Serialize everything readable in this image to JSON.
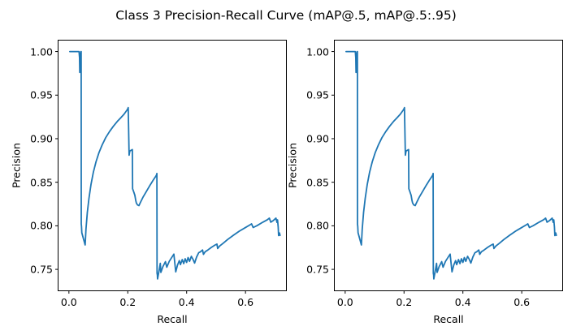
{
  "figure": {
    "background": "#ffffff",
    "text_color": "#000000",
    "spine_color": "#000000"
  },
  "chart_data": {
    "type": "line",
    "suptitle": "Class 3 Precision-Recall Curve (mAP@.5, mAP@.5:.95)",
    "grid": false,
    "legend": "none",
    "note": "two side-by-side subplots displaying the identical precision-recall curve",
    "subplots": [
      {
        "xlabel": "Recall",
        "ylabel": "Precision",
        "xlim": [
          -0.0368,
          0.739
        ],
        "ylim": [
          0.7254,
          1.0131
        ],
        "xtick_values": [
          0.0,
          0.2,
          0.4,
          0.6
        ],
        "xtick_labels": [
          "0.0",
          "0.2",
          "0.4",
          "0.6"
        ],
        "ytick_values": [
          0.75,
          0.8,
          0.85,
          0.9,
          0.95,
          1.0
        ],
        "ytick_labels": [
          "0.75",
          "0.80",
          "0.85",
          "0.90",
          "0.95",
          "1.00"
        ]
      },
      {
        "xlabel": "Recall",
        "ylabel": "Precision",
        "xlim": [
          -0.0368,
          0.739
        ],
        "ylim": [
          0.7254,
          1.0131
        ],
        "xtick_values": [
          0.0,
          0.2,
          0.4,
          0.6
        ],
        "xtick_labels": [
          "0.0",
          "0.2",
          "0.4",
          "0.6"
        ],
        "ytick_values": [
          0.75,
          0.8,
          0.85,
          0.9,
          0.95,
          1.0
        ],
        "ytick_labels": [
          "0.75",
          "0.80",
          "0.85",
          "0.90",
          "0.95",
          "1.00"
        ]
      }
    ],
    "series": [
      {
        "name": "precision-recall-curve",
        "color": "#1f77b4",
        "line_width": 1.8,
        "points": [
          [
            0.003,
            1.0
          ],
          [
            0.0345,
            1.0
          ],
          [
            0.0362,
            0.993
          ],
          [
            0.0368,
            0.976
          ],
          [
            0.0375,
            0.993
          ],
          [
            0.0405,
            1.0
          ],
          [
            0.0415,
            1.0
          ],
          [
            0.0418,
            0.802
          ],
          [
            0.0428,
            0.7995
          ],
          [
            0.0438,
            0.792
          ],
          [
            0.055,
            0.778
          ],
          [
            0.058,
            0.796
          ],
          [
            0.0625,
            0.8155
          ],
          [
            0.068,
            0.8315
          ],
          [
            0.075,
            0.8475
          ],
          [
            0.083,
            0.8615
          ],
          [
            0.092,
            0.8735
          ],
          [
            0.102,
            0.884
          ],
          [
            0.113,
            0.893
          ],
          [
            0.125,
            0.9012
          ],
          [
            0.138,
            0.9082
          ],
          [
            0.151,
            0.9142
          ],
          [
            0.164,
            0.9196
          ],
          [
            0.176,
            0.924
          ],
          [
            0.187,
            0.928
          ],
          [
            0.1945,
            0.9315
          ],
          [
            0.1995,
            0.934
          ],
          [
            0.2015,
            0.9356
          ],
          [
            0.2045,
            0.881
          ],
          [
            0.207,
            0.8858
          ],
          [
            0.212,
            0.8868
          ],
          [
            0.2155,
            0.8875
          ],
          [
            0.2165,
            0.8425
          ],
          [
            0.22,
            0.8392
          ],
          [
            0.224,
            0.835
          ],
          [
            0.2268,
            0.8295
          ],
          [
            0.2292,
            0.8262
          ],
          [
            0.233,
            0.824
          ],
          [
            0.238,
            0.8232
          ],
          [
            0.243,
            0.8268
          ],
          [
            0.252,
            0.833
          ],
          [
            0.264,
            0.84
          ],
          [
            0.276,
            0.8468
          ],
          [
            0.288,
            0.8532
          ],
          [
            0.295,
            0.8568
          ],
          [
            0.2975,
            0.8582
          ],
          [
            0.2988,
            0.86
          ],
          [
            0.2995,
            0.7455
          ],
          [
            0.3005,
            0.7435
          ],
          [
            0.3012,
            0.739
          ],
          [
            0.306,
            0.748
          ],
          [
            0.3105,
            0.757
          ],
          [
            0.3125,
            0.7465
          ],
          [
            0.319,
            0.753
          ],
          [
            0.328,
            0.7588
          ],
          [
            0.3325,
            0.7525
          ],
          [
            0.341,
            0.7592
          ],
          [
            0.3565,
            0.7675
          ],
          [
            0.363,
            0.7472
          ],
          [
            0.369,
            0.755
          ],
          [
            0.375,
            0.76
          ],
          [
            0.379,
            0.7555
          ],
          [
            0.385,
            0.7612
          ],
          [
            0.39,
            0.7566
          ],
          [
            0.395,
            0.7622
          ],
          [
            0.4,
            0.758
          ],
          [
            0.405,
            0.7636
          ],
          [
            0.41,
            0.7592
          ],
          [
            0.416,
            0.765
          ],
          [
            0.422,
            0.7612
          ],
          [
            0.427,
            0.7572
          ],
          [
            0.434,
            0.7642
          ],
          [
            0.441,
            0.7692
          ],
          [
            0.447,
            0.7702
          ],
          [
            0.454,
            0.7722
          ],
          [
            0.457,
            0.7672
          ],
          [
            0.463,
            0.7702
          ],
          [
            0.472,
            0.7722
          ],
          [
            0.484,
            0.7752
          ],
          [
            0.497,
            0.778
          ],
          [
            0.503,
            0.779
          ],
          [
            0.5055,
            0.774
          ],
          [
            0.512,
            0.7768
          ],
          [
            0.524,
            0.78
          ],
          [
            0.539,
            0.7842
          ],
          [
            0.559,
            0.7892
          ],
          [
            0.579,
            0.7938
          ],
          [
            0.599,
            0.7978
          ],
          [
            0.614,
            0.8008
          ],
          [
            0.6205,
            0.8022
          ],
          [
            0.626,
            0.798
          ],
          [
            0.639,
            0.8002
          ],
          [
            0.659,
            0.8042
          ],
          [
            0.674,
            0.807
          ],
          [
            0.681,
            0.8088
          ],
          [
            0.686,
            0.8042
          ],
          [
            0.695,
            0.8062
          ],
          [
            0.7035,
            0.8088
          ],
          [
            0.707,
            0.804
          ],
          [
            0.709,
            0.8068
          ],
          [
            0.711,
            0.7985
          ],
          [
            0.7125,
            0.7888
          ],
          [
            0.7155,
            0.7918
          ],
          [
            0.7175,
            0.789
          ]
        ]
      }
    ]
  }
}
